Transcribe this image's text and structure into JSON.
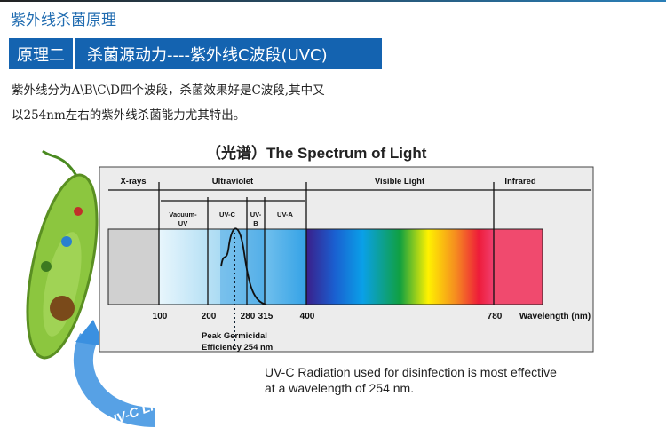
{
  "header": {
    "title": "紫外线杀菌原理",
    "badge": "原理二",
    "heading": "杀菌源动力----紫外线C波段(UVC)"
  },
  "intro": [
    "紫外线分为A\\B\\C\\D四个波段，杀菌效果好是C波段,其中又",
    "以254nm左右的紫外线杀菌能力尤其特出。"
  ],
  "diagram": {
    "title": "（光谱）The Spectrum of Light",
    "regions": [
      "X-rays",
      "Ultraviolet",
      "Visible Light",
      "Infrared"
    ],
    "uv_bands": [
      "Vacuum-",
      "UV",
      "UV-C",
      "UV-",
      "B",
      "UV-A"
    ],
    "ticks": [
      "100",
      "200",
      "280",
      "315",
      "400",
      "780"
    ],
    "axis_label": "Wavelength (nm)",
    "peak_label": [
      "Peak Germicidal",
      "Efficiency 254 nm"
    ],
    "caption": [
      "UV-C Radiation used for disinfection is most effective",
      "at a wavelength of 254 nm."
    ],
    "arrow_label": "UV-C Light"
  },
  "colors": {
    "brand_blue": "#1463b0",
    "title_blue": "#1f6bb0"
  }
}
